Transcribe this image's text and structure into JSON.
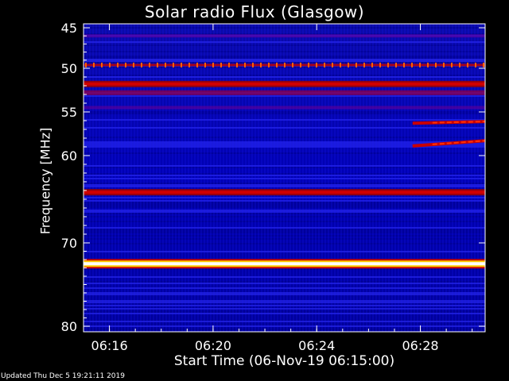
{
  "chart_data": {
    "type": "heatmap",
    "title": "Solar radio Flux (Glasgow)",
    "xlabel": "Start Time (06-Nov-19 06:15:00)",
    "ylabel": "Frequency [MHz]",
    "ylim": [
      45,
      80
    ],
    "y_ticks": [
      "45",
      "50",
      "55",
      "60",
      "70",
      "80"
    ],
    "x_range_min": [
      0,
      15.5
    ],
    "x_ticks": [
      {
        "label": "06:16",
        "minute": 1
      },
      {
        "label": "06:20",
        "minute": 5
      },
      {
        "label": "06:24",
        "minute": 9
      },
      {
        "label": "06:28",
        "minute": 13
      }
    ],
    "colormap": [
      "#00008c",
      "#0000ff",
      "#3232ff",
      "#c80000",
      "#ff0000",
      "#ffff00",
      "#ffffff"
    ],
    "intensity_bands": [
      {
        "freq_mhz": 46.0,
        "level": "medium"
      },
      {
        "freq_mhz": 49.6,
        "level": "high-dotted"
      },
      {
        "freq_mhz": 51.8,
        "level": "high"
      },
      {
        "freq_mhz": 52.8,
        "level": "medium-high"
      },
      {
        "freq_mhz": 54.5,
        "level": "medium"
      },
      {
        "freq_mhz": 64.2,
        "level": "high"
      },
      {
        "freq_mhz": 72.5,
        "level": "saturated"
      }
    ],
    "emission_features": [
      {
        "start_minute": 12.7,
        "end_minute": 15.5,
        "freq_start_mhz": 56.3,
        "freq_end_mhz": 56.1
      },
      {
        "start_minute": 12.7,
        "end_minute": 15.5,
        "freq_start_mhz": 58.9,
        "freq_end_mhz": 58.3
      }
    ]
  },
  "footer": "Updated Thu Dec  5 19:21:11 2019"
}
